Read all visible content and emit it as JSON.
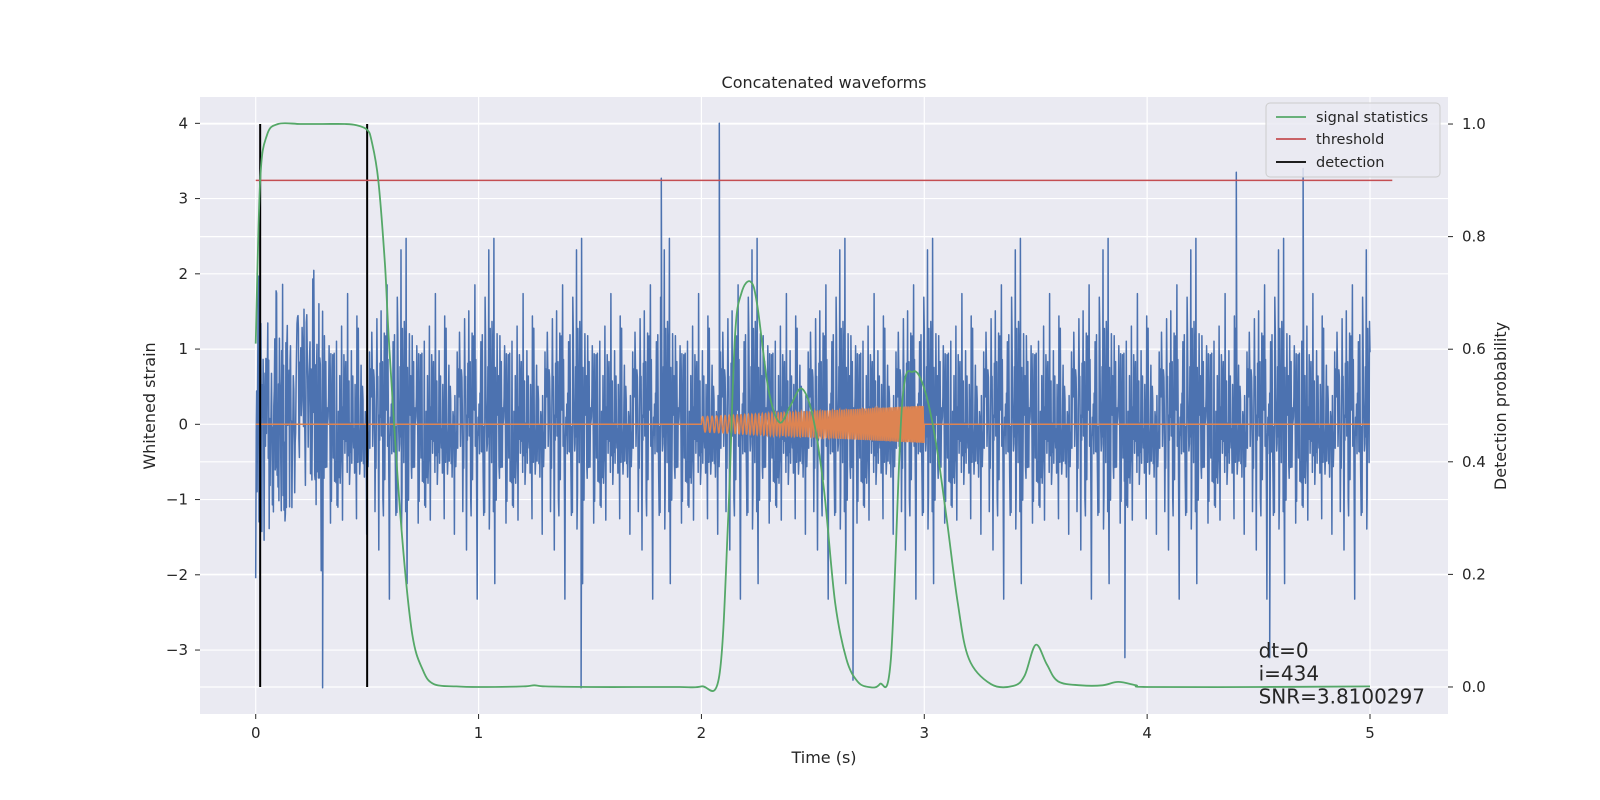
{
  "chart_data": {
    "type": "line",
    "title": "Concatenated waveforms",
    "xlabel": "Time (s)",
    "ylabel": "Whitened strain",
    "y2label": "Detection probability",
    "xlim": [
      -0.25,
      5.35
    ],
    "ylim": [
      -3.85,
      4.35
    ],
    "y2lim": [
      -0.048,
      1.048
    ],
    "xticks": [
      0,
      1,
      2,
      3,
      4,
      5
    ],
    "yticks": [
      -3,
      -2,
      -1,
      0,
      1,
      2,
      3,
      4
    ],
    "y2ticks": [
      0.0,
      0.2,
      0.4,
      0.6,
      0.8,
      1.0
    ],
    "grid": true,
    "legend_position": "top-right",
    "colors": {
      "strain": "#4c72b0",
      "template": "#dd8452",
      "signal_statistics": "#55a868",
      "threshold": "#c44e52",
      "detection": "#000000",
      "background": "#eaeaf2",
      "grid": "#ffffff"
    },
    "series": [
      {
        "name": "",
        "kind": "whitened strain noise",
        "axis": "left",
        "x_range": [
          0,
          5
        ],
        "typical_envelope": [
          -2.0,
          2.3
        ],
        "notable_peaks": [
          [
            1.82,
            3.27
          ],
          [
            2.08,
            4.0
          ],
          [
            4.4,
            3.35
          ],
          [
            4.7,
            3.4
          ]
        ],
        "notable_troughs": [
          [
            0.3,
            -3.5
          ],
          [
            1.46,
            -3.5
          ],
          [
            2.68,
            -3.4
          ],
          [
            3.9,
            -3.1
          ],
          [
            4.55,
            -3.1
          ]
        ]
      },
      {
        "name": "",
        "kind": "injected waveform",
        "axis": "left",
        "x_range": [
          0,
          5
        ],
        "chirp_x_range": [
          2.0,
          3.0
        ],
        "amplitude_range": [
          0.1,
          0.25
        ]
      },
      {
        "name": "signal statistics",
        "axis": "right",
        "x": [
          0,
          0.02,
          0.05,
          0.1,
          0.2,
          0.3,
          0.4,
          0.45,
          0.5,
          0.52,
          0.55,
          0.58,
          0.6,
          0.65,
          0.7,
          0.75,
          0.8,
          0.9,
          1.0,
          1.2,
          1.25,
          1.3,
          1.5,
          1.7,
          1.9,
          2.0,
          2.08,
          2.12,
          2.15,
          2.18,
          2.22,
          2.25,
          2.3,
          2.35,
          2.4,
          2.45,
          2.5,
          2.55,
          2.6,
          2.65,
          2.7,
          2.75,
          2.8,
          2.85,
          2.9,
          2.95,
          3.0,
          3.05,
          3.1,
          3.15,
          3.2,
          3.3,
          3.4,
          3.45,
          3.5,
          3.55,
          3.6,
          3.7,
          3.8,
          3.87,
          3.95,
          4.0,
          4.5,
          5.0
        ],
        "y": [
          0.61,
          0.9,
          0.98,
          1.0,
          1.0,
          1.0,
          1.0,
          0.998,
          0.99,
          0.97,
          0.9,
          0.75,
          0.6,
          0.3,
          0.1,
          0.03,
          0.005,
          0.001,
          0.0,
          0.001,
          0.003,
          0.001,
          0.0,
          0.0,
          0.0,
          0.001,
          0.02,
          0.3,
          0.62,
          0.7,
          0.72,
          0.68,
          0.53,
          0.47,
          0.5,
          0.53,
          0.48,
          0.35,
          0.15,
          0.05,
          0.01,
          0.0,
          0.005,
          0.05,
          0.5,
          0.56,
          0.53,
          0.44,
          0.3,
          0.15,
          0.05,
          0.005,
          0.002,
          0.02,
          0.075,
          0.04,
          0.01,
          0.003,
          0.003,
          0.009,
          0.003,
          0.0,
          0.0,
          0.001
        ]
      },
      {
        "name": "threshold",
        "axis": "right",
        "x": [
          0,
          5.1
        ],
        "y": [
          0.9,
          0.9
        ]
      }
    ],
    "detections": {
      "name": "detection",
      "x": [
        0.02,
        0.5
      ],
      "y_range": [
        0.0,
        1.0
      ]
    },
    "annotations": [
      "dt=0",
      "i=434",
      "SNR=3.8100297"
    ],
    "annotation_anchor": [
      4.5,
      -3.1
    ]
  }
}
